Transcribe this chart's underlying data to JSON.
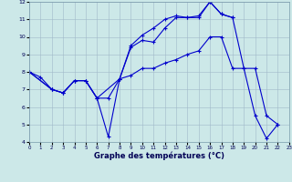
{
  "xlabel": "Graphe des températures (°C)",
  "bg_color": "#cce8e8",
  "grid_color": "#a0b8c8",
  "line_color": "#0000cc",
  "xlim": [
    0,
    23
  ],
  "ylim": [
    4,
    12
  ],
  "yticks": [
    4,
    5,
    6,
    7,
    8,
    9,
    10,
    11,
    12
  ],
  "xticks": [
    0,
    1,
    2,
    3,
    4,
    5,
    6,
    7,
    8,
    9,
    10,
    11,
    12,
    13,
    14,
    15,
    16,
    17,
    18,
    19,
    20,
    21,
    22,
    23
  ],
  "curve1_x": [
    0,
    1,
    2,
    3,
    4,
    5,
    6,
    7,
    8,
    9,
    10,
    11,
    12,
    13,
    14,
    15,
    16,
    17,
    18,
    19,
    20,
    21,
    22
  ],
  "curve1_y": [
    8.0,
    7.7,
    7.0,
    6.8,
    7.5,
    7.5,
    6.5,
    4.3,
    7.6,
    9.5,
    10.1,
    10.5,
    11.0,
    11.2,
    11.1,
    11.2,
    12.0,
    11.3,
    11.1,
    8.2,
    5.5,
    4.2,
    5.0
  ],
  "curve2_x": [
    0,
    2,
    3,
    4,
    5,
    6,
    8,
    9,
    10,
    11,
    12,
    13,
    14,
    15,
    16,
    17,
    18
  ],
  "curve2_y": [
    8.0,
    7.0,
    6.8,
    7.5,
    7.5,
    6.5,
    7.6,
    9.4,
    9.8,
    9.7,
    10.5,
    11.1,
    11.1,
    11.1,
    12.0,
    11.3,
    11.1
  ],
  "curve3_x": [
    0,
    2,
    3,
    4,
    5,
    6,
    7,
    8,
    9,
    10,
    11,
    12,
    13,
    14,
    15,
    16,
    17,
    18,
    19,
    20,
    21,
    22
  ],
  "curve3_y": [
    8.0,
    7.0,
    6.8,
    7.5,
    7.5,
    6.5,
    6.5,
    7.6,
    7.8,
    8.2,
    8.2,
    8.5,
    8.7,
    9.0,
    9.2,
    10.0,
    10.0,
    8.2,
    8.2,
    8.2,
    5.5,
    5.0
  ]
}
